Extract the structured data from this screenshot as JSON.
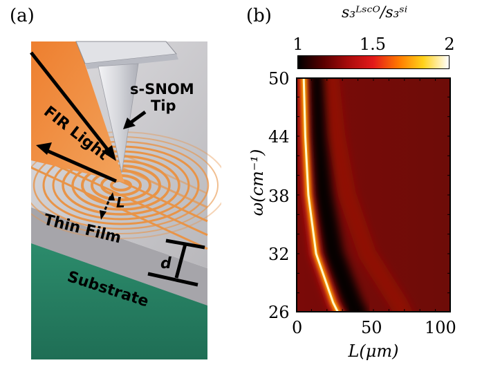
{
  "panel_a": {
    "label": "(a)",
    "annotations": {
      "tip": [
        "s-SNOM",
        "Tip"
      ],
      "light": "FIR Light",
      "L": "L",
      "thin_film": "Thin Film",
      "d": "d",
      "substrate": "Substrate"
    },
    "colors": {
      "beam": "#e8782a",
      "film_top": "#c9c7c9",
      "film_side": "#a9a8ae",
      "substrate": "#2f8a6d",
      "ripple": "#e89448",
      "tip": "#dcdde2"
    },
    "icons": [
      "light-arrow-icon",
      "tip-arrow-icon",
      "distance-arrow-icon",
      "thickness-bar-icon"
    ]
  },
  "panel_b": {
    "label": "(b)",
    "colorbar": {
      "title": "s₃ᴸˢᶜᴼ/s₃ˢⁱ",
      "ticks": [
        "1",
        "1.5",
        "2"
      ],
      "range": [
        1,
        2
      ],
      "colormap": [
        "#000000",
        "#5a0000",
        "#a80b0b",
        "#e31a1a",
        "#ff7a00",
        "#ffd21a",
        "#ffffff"
      ]
    }
  },
  "chart_data": {
    "type": "heatmap",
    "title": "",
    "xlabel": "L(μm)",
    "ylabel": "ω(cm⁻¹)",
    "x_ticks": [
      "0",
      "50",
      "100"
    ],
    "y_ticks": [
      "50",
      "44",
      "38",
      "32",
      "26"
    ],
    "xlim": [
      0,
      100
    ],
    "ylim": [
      26,
      50
    ],
    "z_range": [
      1,
      2
    ],
    "features": [
      {
        "name": "bright-fringe",
        "points": [
          [
            5,
            50
          ],
          [
            6,
            44
          ],
          [
            8,
            38
          ],
          [
            13,
            32
          ],
          [
            24,
            27
          ]
        ],
        "z": 2.0
      },
      {
        "name": "dark-band",
        "points": [
          [
            11,
            50
          ],
          [
            13,
            44
          ],
          [
            17,
            38
          ],
          [
            24,
            32
          ],
          [
            36,
            27
          ]
        ],
        "z": 1.0
      },
      {
        "name": "faint-fringe",
        "points": [
          [
            22,
            50
          ],
          [
            26,
            44
          ],
          [
            33,
            38
          ],
          [
            46,
            32
          ],
          [
            66,
            27
          ]
        ],
        "z": 1.35
      }
    ],
    "background_z": 1.3
  }
}
